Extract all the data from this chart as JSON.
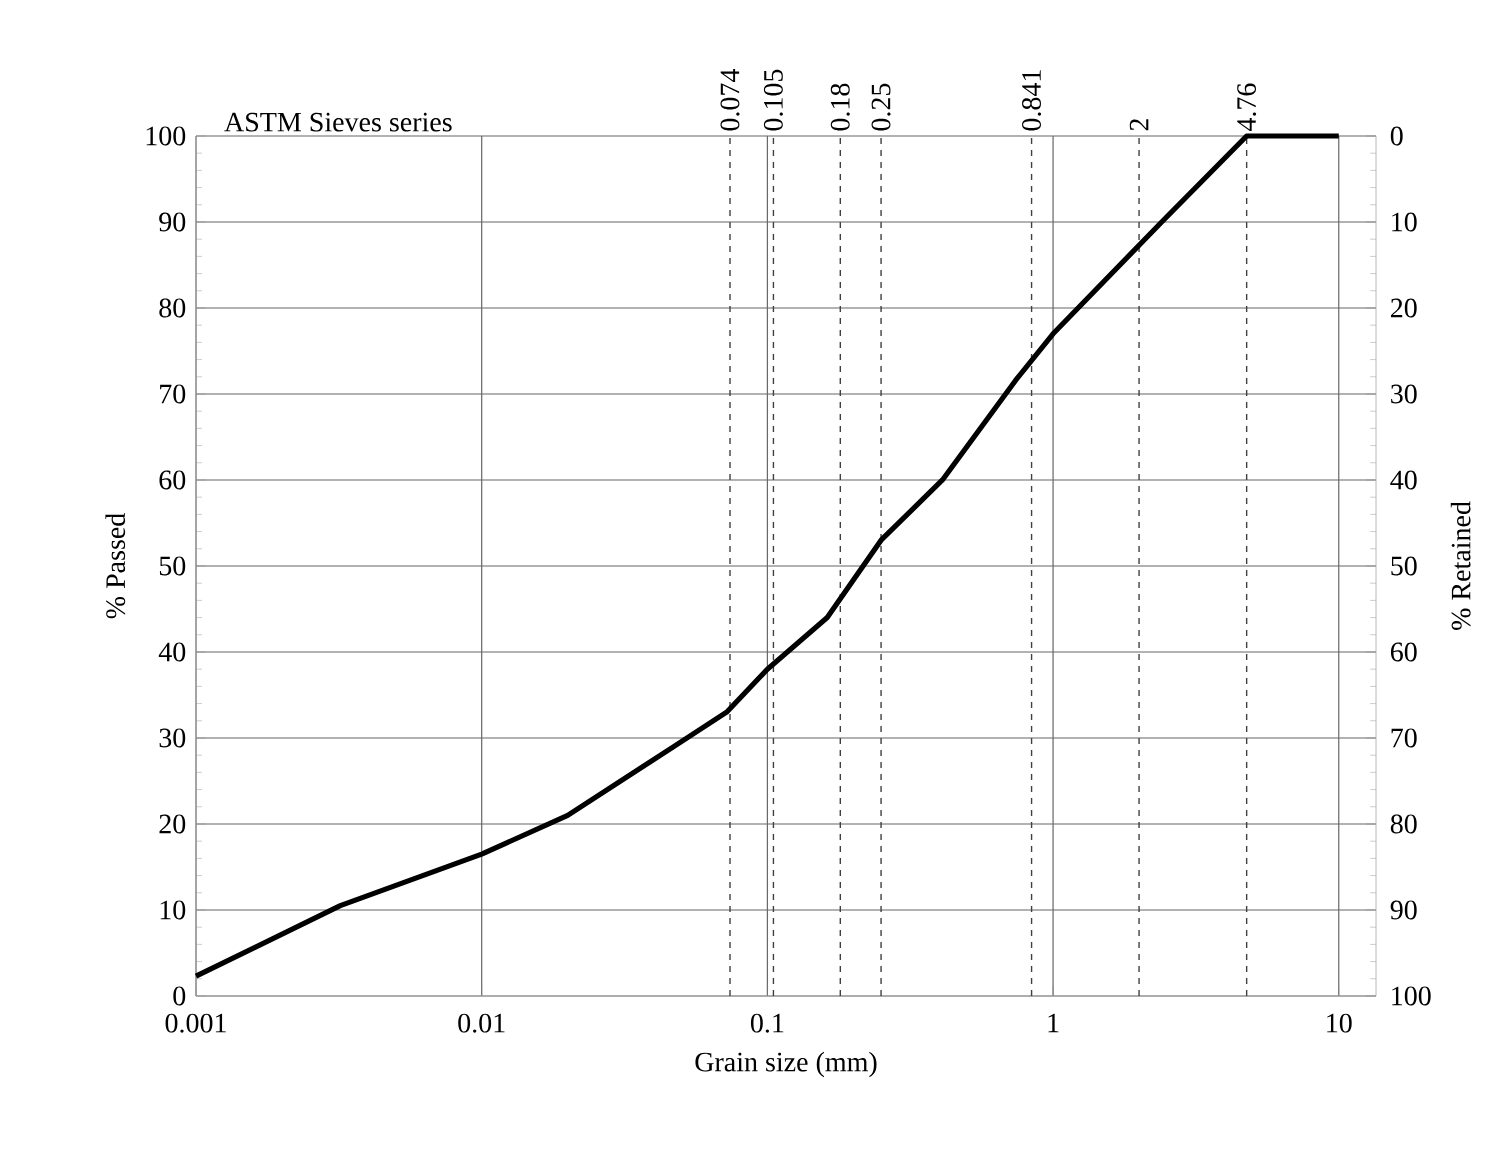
{
  "chart_data": {
    "type": "line",
    "xlabel": "Grain size (mm)",
    "ylabel": "% Passed",
    "y2label": "% Retained",
    "annotations": [
      "ASTM Sieves series"
    ],
    "log": "x",
    "xlim": [
      0.001,
      13.5
    ],
    "xticks": [
      0.001,
      0.01,
      0.1,
      1,
      10
    ],
    "ylim": [
      0,
      100
    ],
    "yticks": [
      0,
      10,
      20,
      30,
      40,
      50,
      60,
      70,
      80,
      90,
      100
    ],
    "y2lim": [
      100,
      0
    ],
    "y2ticks": [
      0,
      10,
      20,
      30,
      40,
      50,
      60,
      70,
      80,
      90,
      100
    ],
    "grid": true,
    "marker": "none",
    "line_style": "solid",
    "ref_lines": [
      {
        "axis": "x",
        "value": 0.074,
        "label": "0.074",
        "line_style": "dashed",
        "color": "#404040"
      },
      {
        "axis": "x",
        "value": 0.105,
        "label": "0.105",
        "line_style": "dashed",
        "color": "#404040"
      },
      {
        "axis": "x",
        "value": 0.18,
        "label": "0.18",
        "line_style": "dashed",
        "color": "#404040"
      },
      {
        "axis": "x",
        "value": 0.25,
        "label": "0.25",
        "line_style": "dashed",
        "color": "#404040"
      },
      {
        "axis": "x",
        "value": 0.841,
        "label": "0.841",
        "line_style": "dashed",
        "color": "#404040"
      },
      {
        "axis": "x",
        "value": 2,
        "label": "2",
        "line_style": "dashed",
        "color": "#404040"
      },
      {
        "axis": "x",
        "value": 4.76,
        "label": "4.76",
        "line_style": "dashed",
        "color": "#404040"
      }
    ],
    "series": [
      {
        "color": "#000000",
        "x": [
          0.001,
          0.0032,
          0.01,
          0.02,
          0.047,
          0.072,
          0.1,
          0.162,
          0.25,
          0.41,
          0.74,
          1,
          2.4,
          4.76,
          10
        ],
        "values": [
          2.3,
          10.5,
          16.5,
          21,
          29,
          33,
          38,
          44,
          53,
          60,
          71.6,
          77,
          90,
          100,
          100
        ]
      }
    ]
  }
}
